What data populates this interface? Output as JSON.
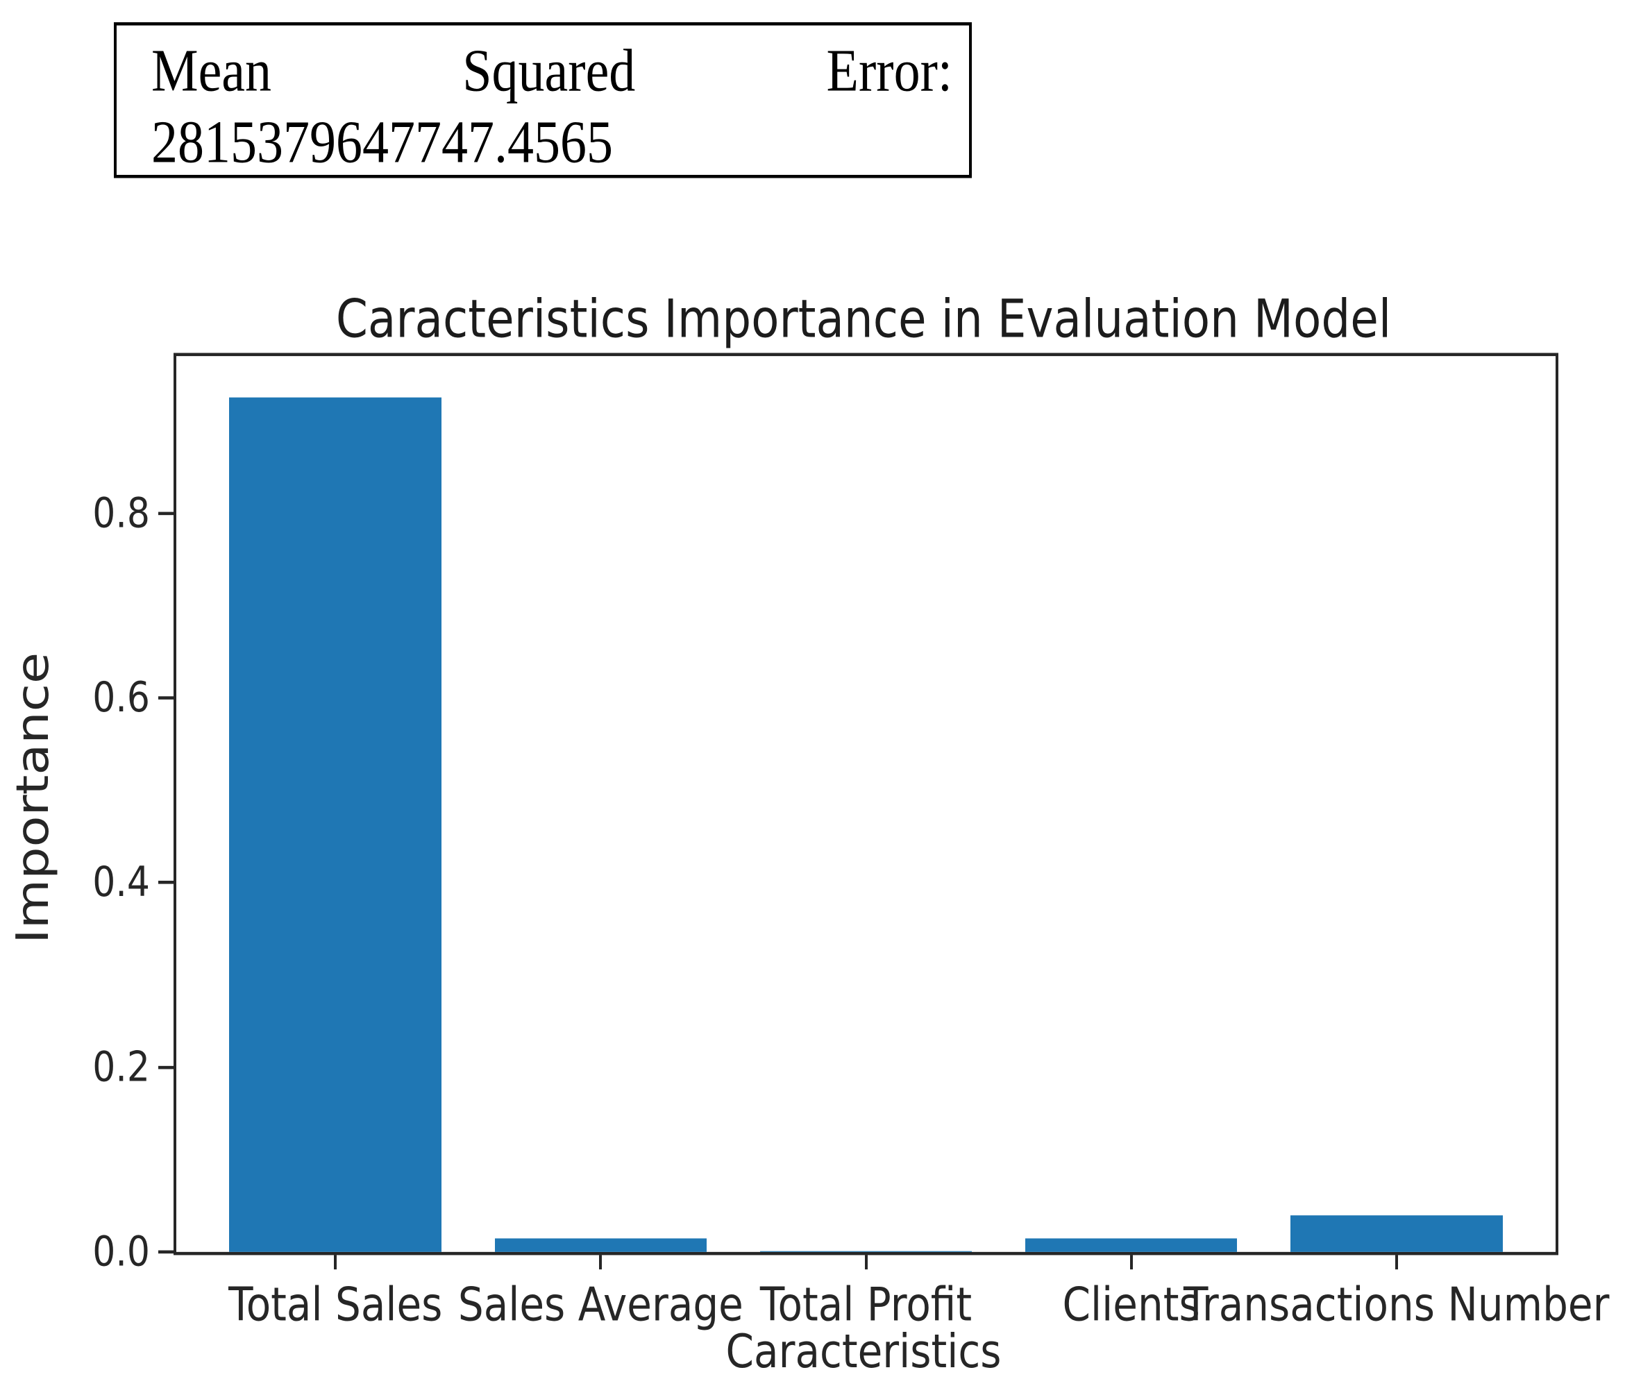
{
  "mse": {
    "words": [
      "Mean",
      "Squared",
      "Error:"
    ],
    "value": "2815379647747.4565",
    "full_text": "Mean Squared Error: 2815379647747.4565"
  },
  "chart_data": {
    "type": "bar",
    "title": "Caracteristics Importance in Evaluation Model",
    "xlabel": "Caracteristics",
    "ylabel": "Importance",
    "categories": [
      "Total Sales",
      "Sales Average",
      "Total Profit",
      "Clients",
      "Transactions Number"
    ],
    "values": [
      0.925,
      0.015,
      0.001,
      0.015,
      0.04
    ],
    "yticks": [
      0.0,
      0.2,
      0.4,
      0.6,
      0.8
    ],
    "ytick_labels": [
      "0.0",
      "0.2",
      "0.4",
      "0.6",
      "0.8"
    ],
    "ylim": [
      0,
      0.97
    ],
    "xlim": [
      -0.6,
      4.6
    ],
    "bar_width": 0.8,
    "bar_color": "#1f77b4",
    "spine_color": "#262626",
    "grid": false,
    "legend": null
  }
}
